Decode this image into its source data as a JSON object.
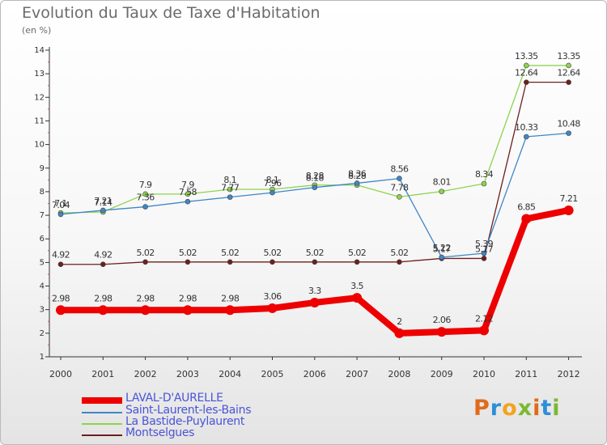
{
  "header": {
    "title": "Evolution du Taux de Taxe d'Habitation",
    "subtitle": "(en %)"
  },
  "brand": "Proxiti",
  "chart_data": {
    "type": "line",
    "x": [
      "2000",
      "2001",
      "2002",
      "2003",
      "2004",
      "2005",
      "2006",
      "2007",
      "2008",
      "2009",
      "2010",
      "2011",
      "2012"
    ],
    "ylim": [
      1,
      14
    ],
    "yticks": [
      1,
      2,
      3,
      4,
      5,
      6,
      7,
      8,
      9,
      10,
      11,
      12,
      13,
      14
    ],
    "grid": false,
    "legend_position": "bottom-left",
    "series": [
      {
        "name": "LAVAL-D'AURELLE",
        "color": "#ee0000",
        "values": [
          2.98,
          2.98,
          2.98,
          2.98,
          2.98,
          3.06,
          3.3,
          3.5,
          2,
          2.06,
          2.12,
          6.85,
          7.21
        ],
        "labels": [
          "2.98",
          "2.98",
          "2.98",
          "2.98",
          "2.98",
          "3.06",
          "3.3",
          "3.5",
          "2",
          "2.06",
          "2.12",
          "6.85",
          "7.21"
        ]
      },
      {
        "name": "Saint-Laurent-les-Bains",
        "color": "#3f86c6",
        "values": [
          7.04,
          7.21,
          7.36,
          7.58,
          7.77,
          7.96,
          8.18,
          8.36,
          8.56,
          5.22,
          5.39,
          10.33,
          10.48
        ],
        "labels": [
          "7.04",
          "7.21",
          "7.36",
          "7.58",
          "7.77",
          "7.96",
          "8.18",
          "8.36",
          "8.56",
          "5.22",
          "5.39",
          "10.33",
          "10.48"
        ]
      },
      {
        "name": "La Bastide-Puylaurent",
        "color": "#8ed34f",
        "values": [
          7.1,
          7.14,
          7.9,
          7.9,
          8.1,
          8.1,
          8.28,
          8.28,
          7.78,
          8.01,
          8.34,
          13.35,
          13.35
        ],
        "labels": [
          "7.1",
          "7.14",
          "7.9",
          "7.9",
          "8.1",
          "8.1",
          "8.28",
          "8.28",
          "7.78",
          "8.01",
          "8.34",
          "13.35",
          "13.35"
        ]
      },
      {
        "name": "Montselgues",
        "color": "#6e1f1f",
        "values": [
          4.92,
          4.92,
          5.02,
          5.02,
          5.02,
          5.02,
          5.02,
          5.02,
          5.02,
          5.17,
          5.17,
          12.64,
          12.64
        ],
        "labels": [
          "4.92",
          "4.92",
          "5.02",
          "5.02",
          "5.02",
          "5.02",
          "5.02",
          "5.02",
          "5.02",
          "5.17",
          "5.17",
          "12.64",
          "12.64"
        ]
      }
    ]
  }
}
